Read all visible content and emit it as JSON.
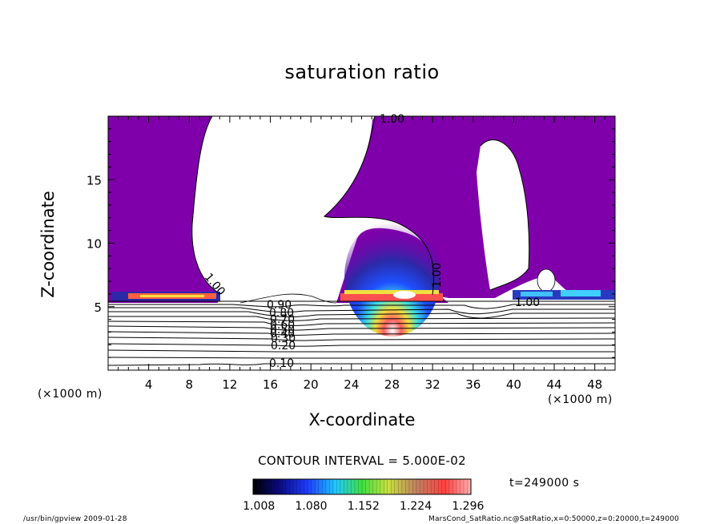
{
  "chart_data": {
    "type": "contour",
    "title": "saturation ratio",
    "xlabel": "X-coordinate",
    "ylabel": "Z-coordinate",
    "x_unit": "(×1000 m)",
    "y_unit": "(×1000 m)",
    "xlim": [
      0,
      50
    ],
    "ylim": [
      0,
      20
    ],
    "x_ticks": [
      4,
      8,
      12,
      16,
      20,
      24,
      28,
      32,
      36,
      40,
      44,
      48
    ],
    "y_ticks": [
      5,
      10,
      15
    ],
    "contour_labels": [
      "1.00",
      "1.00",
      "1.00",
      "1.00",
      "0.90",
      "0.80",
      "0.70",
      "0.60",
      "0.50",
      "0.40",
      "0.30",
      "0.20",
      "0.10"
    ],
    "contour_interval_text": "CONTOUR INTERVAL = 5.000E-02",
    "colorbar": {
      "ticks": [
        "1.008",
        "1.080",
        "1.152",
        "1.224",
        "1.296"
      ],
      "min": 1.0,
      "max": 1.3
    },
    "time_label": "t=249000 s",
    "colors": {
      "supersaturated": "#7f00aa",
      "lines": "#000000"
    }
  },
  "footer": {
    "left": "/usr/bin/gpview   2009-01-28",
    "right": "MarsCond_SatRatio.nc@SatRatio,x=0:50000,z=0:20000,t=249000"
  }
}
